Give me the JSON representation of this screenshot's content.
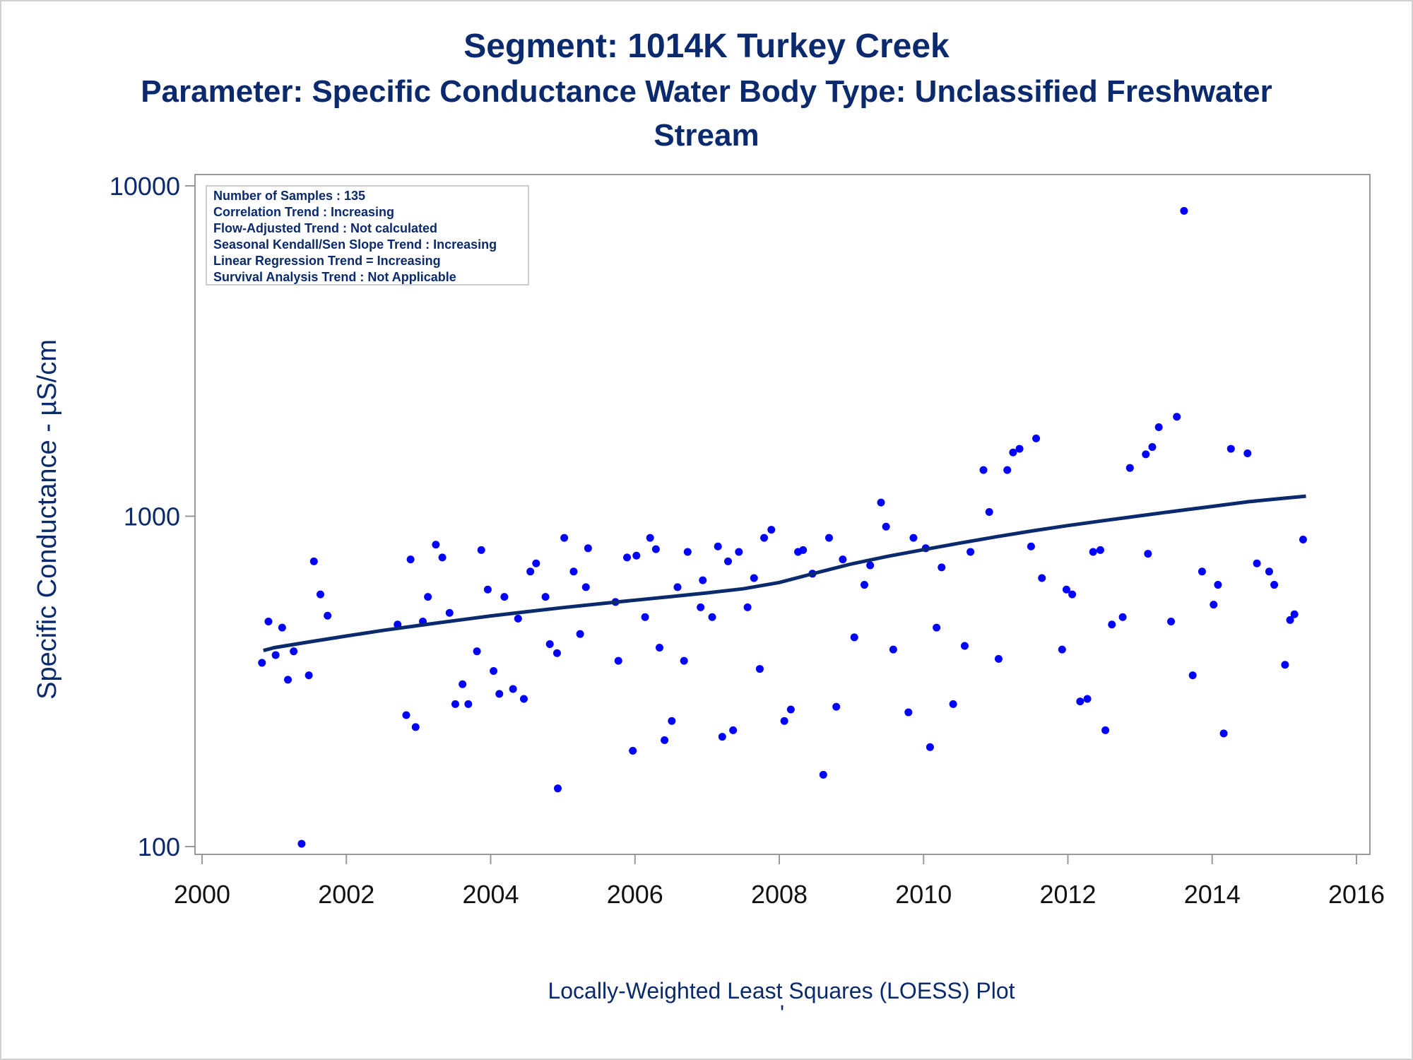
{
  "chart_data": {
    "type": "scatter",
    "title": "Segment: 1014K  Turkey Creek",
    "subtitle_line1": "Parameter: Specific Conductance   Water Body Type: Unclassified Freshwater",
    "subtitle_line2": "Stream",
    "ylabel": "Specific Conductance -  µS/cm",
    "footnote": "Locally-Weighted Least Squares (LOESS) Plot",
    "footnote_mark": "'",
    "y_scale": "log",
    "xlim": [
      2000,
      2016
    ],
    "ylim": [
      100,
      10000
    ],
    "x_ticks": [
      "2000",
      "2002",
      "2004",
      "2006",
      "2008",
      "2010",
      "2012",
      "2014",
      "2016"
    ],
    "y_ticks": [
      "100",
      "1000",
      "10000"
    ],
    "grid": false,
    "stats_box": {
      "placement": "top-left",
      "lines": [
        "Number of Samples : 135",
        "Correlation Trend : Increasing",
        "Flow-Adjusted Trend : Not calculated",
        "Seasonal Kendall/Sen Slope Trend : Increasing",
        "Linear Regression Trend = Increasing",
        "Survival Analysis Trend : Not Applicable"
      ]
    },
    "colors": {
      "points": "#0000ff",
      "loess": "#0b2a6e",
      "text": "#0b2a6e"
    },
    "series": [
      {
        "type": "scatter",
        "points": [
          [
            2000.83,
            360
          ],
          [
            2000.92,
            480
          ],
          [
            2001.02,
            380
          ],
          [
            2001.11,
            460
          ],
          [
            2001.19,
            320
          ],
          [
            2001.27,
            390
          ],
          [
            2001.38,
            102
          ],
          [
            2001.48,
            330
          ],
          [
            2001.55,
            730
          ],
          [
            2001.64,
            580
          ],
          [
            2001.74,
            500
          ],
          [
            2002.71,
            470
          ],
          [
            2002.83,
            250
          ],
          [
            2002.89,
            740
          ],
          [
            2002.96,
            230
          ],
          [
            2003.06,
            480
          ],
          [
            2003.13,
            570
          ],
          [
            2003.24,
            820
          ],
          [
            2003.33,
            750
          ],
          [
            2003.43,
            510
          ],
          [
            2003.51,
            270
          ],
          [
            2003.61,
            310
          ],
          [
            2003.69,
            270
          ],
          [
            2003.81,
            390
          ],
          [
            2003.87,
            790
          ],
          [
            2003.96,
            600
          ],
          [
            2004.04,
            340
          ],
          [
            2004.12,
            290
          ],
          [
            2004.19,
            570
          ],
          [
            2004.31,
            300
          ],
          [
            2004.38,
            490
          ],
          [
            2004.46,
            280
          ],
          [
            2004.55,
            680
          ],
          [
            2004.63,
            720
          ],
          [
            2004.76,
            570
          ],
          [
            2004.82,
            410
          ],
          [
            2004.92,
            385
          ],
          [
            2004.93,
            150
          ],
          [
            2005.02,
            860
          ],
          [
            2005.15,
            680
          ],
          [
            2005.24,
            440
          ],
          [
            2005.32,
            610
          ],
          [
            2005.35,
            800
          ],
          [
            2005.73,
            550
          ],
          [
            2005.77,
            365
          ],
          [
            2005.89,
            750
          ],
          [
            2005.97,
            195
          ],
          [
            2006.02,
            760
          ],
          [
            2006.14,
            495
          ],
          [
            2006.21,
            860
          ],
          [
            2006.29,
            795
          ],
          [
            2006.34,
            400
          ],
          [
            2006.41,
            210
          ],
          [
            2006.51,
            240
          ],
          [
            2006.59,
            610
          ],
          [
            2006.68,
            365
          ],
          [
            2006.73,
            780
          ],
          [
            2006.91,
            530
          ],
          [
            2006.94,
            640
          ],
          [
            2007.07,
            495
          ],
          [
            2007.15,
            810
          ],
          [
            2007.21,
            215
          ],
          [
            2007.29,
            730
          ],
          [
            2007.36,
            225
          ],
          [
            2007.44,
            780
          ],
          [
            2007.56,
            530
          ],
          [
            2007.65,
            650
          ],
          [
            2007.73,
            345
          ],
          [
            2007.79,
            860
          ],
          [
            2007.89,
            910
          ],
          [
            2008.07,
            240
          ],
          [
            2008.16,
            260
          ],
          [
            2008.26,
            780
          ],
          [
            2008.33,
            790
          ],
          [
            2008.46,
            670
          ],
          [
            2008.61,
            165
          ],
          [
            2008.69,
            860
          ],
          [
            2008.79,
            265
          ],
          [
            2008.88,
            740
          ],
          [
            2009.04,
            430
          ],
          [
            2009.18,
            620
          ],
          [
            2009.26,
            710
          ],
          [
            2009.41,
            1100
          ],
          [
            2009.48,
            930
          ],
          [
            2009.58,
            395
          ],
          [
            2009.79,
            255
          ],
          [
            2009.86,
            860
          ],
          [
            2010.03,
            800
          ],
          [
            2010.09,
            200
          ],
          [
            2010.18,
            460
          ],
          [
            2010.25,
            700
          ],
          [
            2010.41,
            270
          ],
          [
            2010.57,
            405
          ],
          [
            2010.65,
            780
          ],
          [
            2010.83,
            1380
          ],
          [
            2010.91,
            1030
          ],
          [
            2011.04,
            370
          ],
          [
            2011.16,
            1380
          ],
          [
            2011.24,
            1560
          ],
          [
            2011.33,
            1600
          ],
          [
            2011.49,
            810
          ],
          [
            2011.56,
            1720
          ],
          [
            2011.64,
            650
          ],
          [
            2011.92,
            395
          ],
          [
            2011.98,
            600
          ],
          [
            2012.06,
            580
          ],
          [
            2012.17,
            275
          ],
          [
            2012.27,
            280
          ],
          [
            2012.35,
            780
          ],
          [
            2012.45,
            790
          ],
          [
            2012.52,
            225
          ],
          [
            2012.61,
            470
          ],
          [
            2012.76,
            495
          ],
          [
            2012.86,
            1400
          ],
          [
            2013.08,
            1540
          ],
          [
            2013.11,
            770
          ],
          [
            2013.17,
            1620
          ],
          [
            2013.26,
            1860
          ],
          [
            2013.43,
            480
          ],
          [
            2013.51,
            2000
          ],
          [
            2013.61,
            8400
          ],
          [
            2013.73,
            330
          ],
          [
            2013.86,
            680
          ],
          [
            2014.02,
            540
          ],
          [
            2014.08,
            620
          ],
          [
            2014.16,
            220
          ],
          [
            2014.26,
            1600
          ],
          [
            2014.49,
            1550
          ],
          [
            2014.62,
            720
          ],
          [
            2014.79,
            680
          ],
          [
            2014.86,
            620
          ],
          [
            2015.01,
            355
          ],
          [
            2015.08,
            485
          ],
          [
            2015.14,
            505
          ],
          [
            2015.26,
            850
          ]
        ]
      },
      {
        "type": "line",
        "name": "LOESS",
        "points": [
          [
            2000.85,
            392
          ],
          [
            2001.0,
            400
          ],
          [
            2001.5,
            417
          ],
          [
            2002.0,
            434
          ],
          [
            2002.5,
            451
          ],
          [
            2003.0,
            467
          ],
          [
            2003.5,
            483
          ],
          [
            2004.0,
            499
          ],
          [
            2004.5,
            514
          ],
          [
            2005.0,
            529
          ],
          [
            2005.5,
            543
          ],
          [
            2006.0,
            557
          ],
          [
            2006.5,
            571
          ],
          [
            2007.0,
            586
          ],
          [
            2007.5,
            603
          ],
          [
            2008.0,
            630
          ],
          [
            2008.5,
            673
          ],
          [
            2009.0,
            717
          ],
          [
            2009.5,
            756
          ],
          [
            2010.0,
            792
          ],
          [
            2010.5,
            829
          ],
          [
            2011.0,
            866
          ],
          [
            2011.5,
            902
          ],
          [
            2012.0,
            937
          ],
          [
            2012.5,
            970
          ],
          [
            2013.0,
            1003
          ],
          [
            2013.5,
            1037
          ],
          [
            2014.0,
            1071
          ],
          [
            2014.5,
            1106
          ],
          [
            2015.0,
            1134
          ],
          [
            2015.3,
            1150
          ]
        ]
      }
    ]
  }
}
